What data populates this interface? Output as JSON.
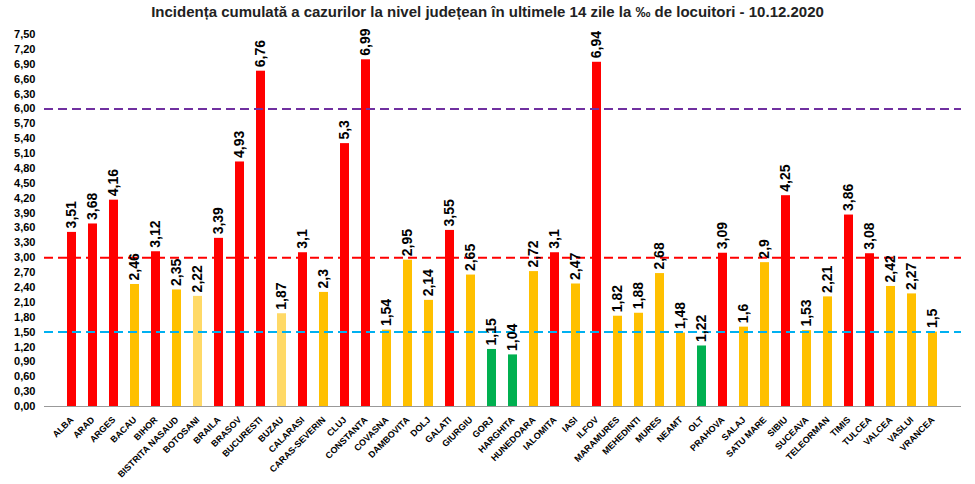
{
  "chart_data": {
    "type": "bar",
    "title": "Incidența cumulată a cazurilor la nivel județean în ultimele 14 zile la ‰ de locuitori - 10.12.2020",
    "categories": [
      "ALBA",
      "ARAD",
      "ARGES",
      "BACAU",
      "BIHOR",
      "BISTRITA NASAUD",
      "BOTOSANI",
      "BRAILA",
      "BRASOV",
      "BUCURESTI",
      "BUZAU",
      "CALARASI",
      "CARAS-SEVERIN",
      "CLUJ",
      "CONSTANTA",
      "COVASNA",
      "DAMBOVITA",
      "DOLJ",
      "GALATI",
      "GIURGIU",
      "GORJ",
      "HARGHITA",
      "HUNEDOARA",
      "IALOMITA",
      "IASI",
      "ILFOV",
      "MARAMURES",
      "MEHEDINTI",
      "MURES",
      "NEAMT",
      "OLT",
      "PRAHOVA",
      "SALAJ",
      "SATU MARE",
      "SIBIU",
      "SUCEAVA",
      "TELEORMAN",
      "TIMIS",
      "TULCEA",
      "VALCEA",
      "VASLUI",
      "VRANCEA"
    ],
    "values": [
      3.51,
      3.68,
      4.16,
      2.46,
      3.12,
      2.35,
      2.22,
      3.39,
      4.93,
      6.76,
      1.87,
      3.1,
      2.3,
      5.3,
      6.99,
      1.54,
      2.95,
      2.14,
      3.55,
      2.65,
      1.15,
      1.04,
      2.72,
      3.1,
      2.47,
      6.94,
      1.82,
      1.88,
      2.68,
      1.48,
      1.22,
      3.09,
      1.6,
      2.9,
      4.25,
      1.53,
      2.21,
      3.86,
      3.08,
      2.42,
      2.27,
      1.5
    ],
    "value_labels": [
      "3,51",
      "3,68",
      "4,16",
      "2,46",
      "3,12",
      "2,35",
      "2,22",
      "3,39",
      "4,93",
      "6,76",
      "1,87",
      "3,1",
      "2,3",
      "5,3",
      "6,99",
      "1,54",
      "2,95",
      "2,14",
      "3,55",
      "2,65",
      "1,15",
      "1,04",
      "2,72",
      "3,1",
      "2,47",
      "6,94",
      "1,82",
      "1,88",
      "2,68",
      "1,48",
      "1,22",
      "3,09",
      "1,6",
      "2,9",
      "4,25",
      "1,53",
      "2,21",
      "3,86",
      "3,08",
      "2,42",
      "2,27",
      "1,5"
    ],
    "colors": [
      "#ff0000",
      "#ff0000",
      "#ff0000",
      "#ffc000",
      "#ff0000",
      "#ffc000",
      "#ffd966",
      "#ff0000",
      "#ff0000",
      "#ff0000",
      "#ffd966",
      "#ff0000",
      "#ffc000",
      "#ff0000",
      "#ff0000",
      "#ffc000",
      "#ffc000",
      "#ffc000",
      "#ff0000",
      "#ffc000",
      "#00b050",
      "#00b050",
      "#ffc000",
      "#ff0000",
      "#ffc000",
      "#ff0000",
      "#ffc000",
      "#ffc000",
      "#ffc000",
      "#ffc000",
      "#00b050",
      "#ff0000",
      "#ffc000",
      "#ffc000",
      "#ff0000",
      "#ffc000",
      "#ffc000",
      "#ff0000",
      "#ff0000",
      "#ffc000",
      "#ffc000",
      "#ffc000"
    ],
    "data_labels": true,
    "ylim": [
      0,
      7.5
    ],
    "yticks": [
      {
        "value": 0,
        "label": "0,00"
      },
      {
        "value": 0.3,
        "label": "0,30"
      },
      {
        "value": 0.6,
        "label": "0,60"
      },
      {
        "value": 0.9,
        "label": "0,90"
      },
      {
        "value": 1.2,
        "label": "1,20"
      },
      {
        "value": 1.5,
        "label": "1,50"
      },
      {
        "value": 1.8,
        "label": "1,80"
      },
      {
        "value": 2.1,
        "label": "2,10"
      },
      {
        "value": 2.4,
        "label": "2,40"
      },
      {
        "value": 2.7,
        "label": "2,70"
      },
      {
        "value": 3,
        "label": "3,00"
      },
      {
        "value": 3.3,
        "label": "3,30"
      },
      {
        "value": 3.6,
        "label": "3,60"
      },
      {
        "value": 3.9,
        "label": "3,90"
      },
      {
        "value": 4.2,
        "label": "4,20"
      },
      {
        "value": 4.5,
        "label": "4,50"
      },
      {
        "value": 4.8,
        "label": "4,80"
      },
      {
        "value": 5.1,
        "label": "5,10"
      },
      {
        "value": 5.4,
        "label": "5,40"
      },
      {
        "value": 5.7,
        "label": "5,70"
      },
      {
        "value": 6,
        "label": "6,00"
      },
      {
        "value": 6.3,
        "label": "6,30"
      },
      {
        "value": 6.6,
        "label": "6,60"
      },
      {
        "value": 6.9,
        "label": "6,90"
      },
      {
        "value": 7.2,
        "label": "7,20"
      },
      {
        "value": 7.5,
        "label": "7,50"
      }
    ],
    "grid": false,
    "reference_lines": [
      {
        "value": 6,
        "color": "#7030a0",
        "line_style": "dashed"
      },
      {
        "value": 3,
        "color": "#ff0000",
        "line_style": "dashed"
      },
      {
        "value": 1.5,
        "color": "#00b0f0",
        "line_style": "dashed"
      }
    ]
  }
}
